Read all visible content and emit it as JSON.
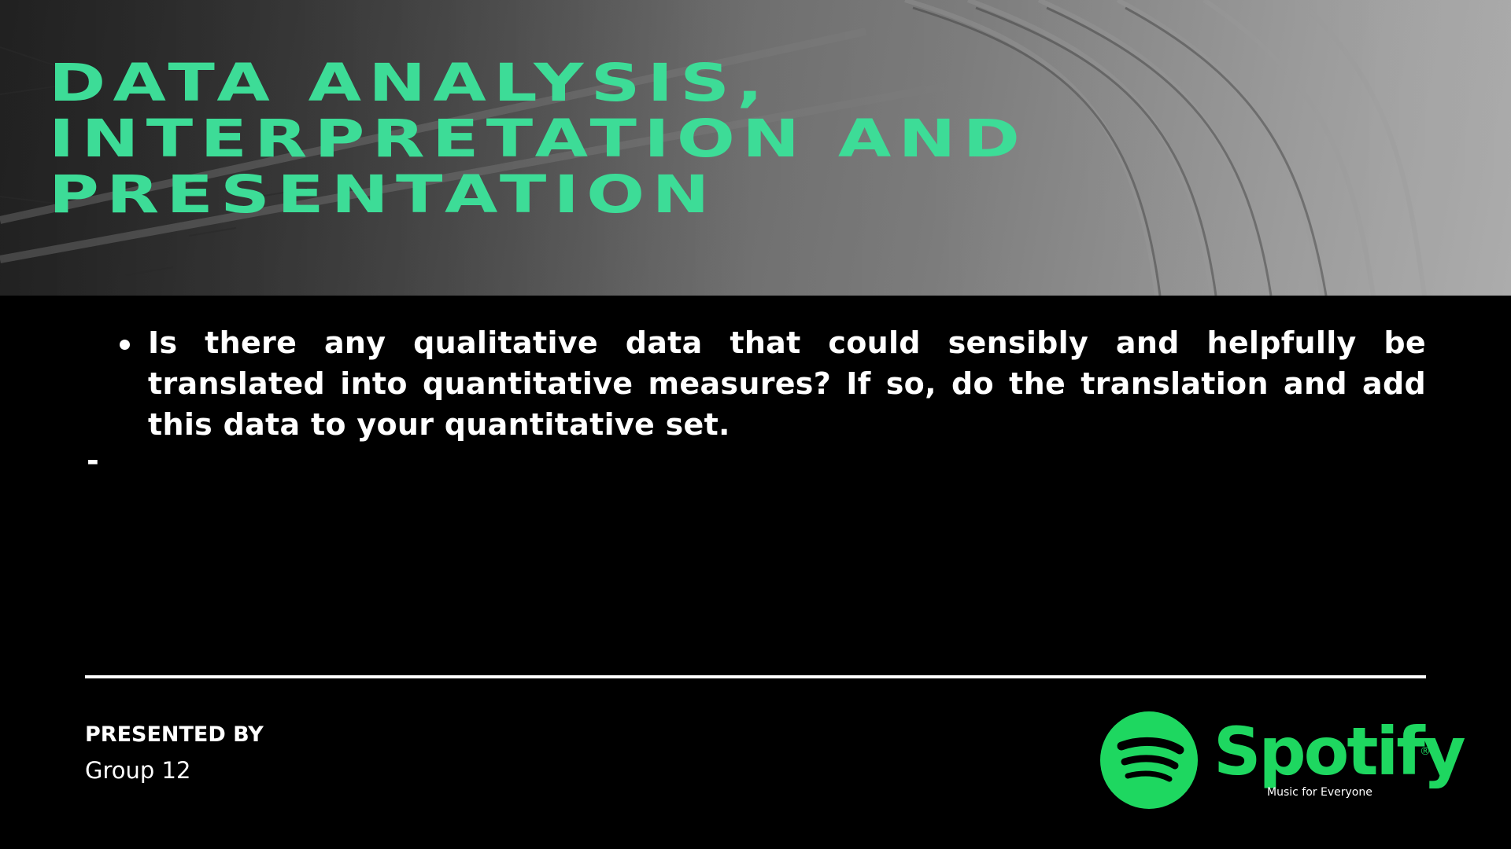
{
  "slide": {
    "title": "DATA ANALYSIS,\nINTERPRETATION AND\nPRESENTATION",
    "bullets": [
      "Is there any qualitative data that could sensibly and helpfully be translated into quantitative measures? If so, do the translation and add this data to your quantitative set."
    ],
    "dash": "-",
    "footer": {
      "presented_label": "PRESENTED BY",
      "presenter": "Group 12"
    },
    "logo": {
      "icon": "spotify-logo-icon",
      "wordmark": "Spotify",
      "registered": "®",
      "tagline": "Music for Everyone"
    }
  },
  "colors": {
    "title": "#3ddc97",
    "brand_green": "#1ed760",
    "background": "#000000",
    "text": "#ffffff"
  }
}
